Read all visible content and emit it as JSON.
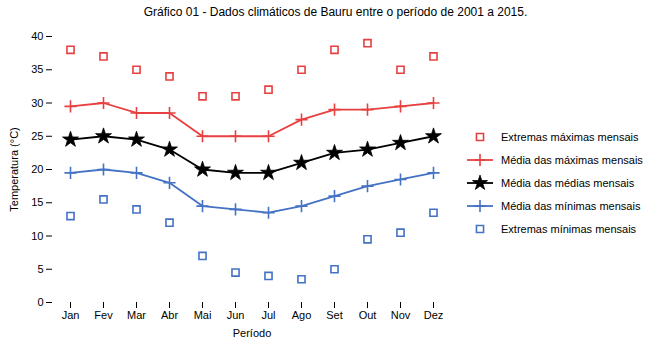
{
  "chart_data": {
    "type": "line",
    "title": "Gráfico 01 - Dados climáticos de Bauru entre o período de 2001 a 2015.",
    "xlabel": "Período",
    "ylabel": "Temperatura (°C)",
    "categories": [
      "Jan",
      "Fev",
      "Mar",
      "Abr",
      "Mai",
      "Jun",
      "Jul",
      "Ago",
      "Set",
      "Out",
      "Nov",
      "Dez"
    ],
    "series": [
      {
        "name": "Extremas máximas mensais",
        "color": "#e84040",
        "marker": "square",
        "line_style": "none",
        "values": [
          38,
          37,
          35,
          34,
          31,
          31,
          32,
          35,
          38,
          39,
          35,
          37
        ]
      },
      {
        "name": "Média das máximas mensais",
        "color": "#e84040",
        "marker": "plus",
        "line_style": "solid",
        "values": [
          29.5,
          30.0,
          28.5,
          28.5,
          25.0,
          25.0,
          25.0,
          27.5,
          29.0,
          29.0,
          29.5,
          30.0
        ]
      },
      {
        "name": "Média das médias mensais",
        "color": "#000000",
        "marker": "star",
        "line_style": "solid",
        "values": [
          24.5,
          25.0,
          24.5,
          23.0,
          20.0,
          19.5,
          19.5,
          21.0,
          22.5,
          23.0,
          24.0,
          25.0
        ]
      },
      {
        "name": "Média das mínimas mensais",
        "color": "#4472c4",
        "marker": "plus",
        "line_style": "solid",
        "values": [
          19.5,
          20.0,
          19.5,
          18.0,
          14.5,
          14.0,
          13.5,
          14.5,
          16.0,
          17.5,
          18.5,
          19.5
        ]
      },
      {
        "name": "Extremas mínimas mensais",
        "color": "#4472c4",
        "marker": "square",
        "line_style": "none",
        "values": [
          13.0,
          15.5,
          14.0,
          12.0,
          7.0,
          4.5,
          4.0,
          3.5,
          5.0,
          9.5,
          10.5,
          13.5
        ]
      }
    ],
    "ylim": [
      0,
      40
    ],
    "yticks": [
      0,
      5,
      10,
      15,
      20,
      25,
      30,
      35,
      40
    ],
    "grid": false,
    "legend": "right"
  }
}
